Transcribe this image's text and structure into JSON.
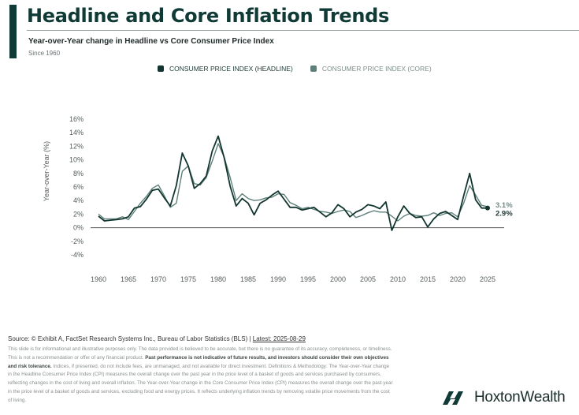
{
  "header": {
    "title": "Headline and Core Inflation Trends",
    "subtitle": "Year-over-Year change in Headline vs Core Consumer Price Index",
    "since": "Since 1960"
  },
  "legend": {
    "items": [
      {
        "label": "CONSUMER PRICE INDEX (HEADLINE)",
        "color": "#12352f"
      },
      {
        "label": "CONSUMER PRICE INDEX (CORE)",
        "color": "#5f807a"
      }
    ]
  },
  "chart_data": {
    "type": "line",
    "title": "Headline and Core Inflation Trends",
    "subtitle": "Year-over-Year change in Headline vs Core Consumer Price Index",
    "xlabel": "",
    "ylabel": "Year-over-Year (%)",
    "xlim": [
      1960,
      2025
    ],
    "ylim": [
      -4,
      16
    ],
    "x_ticks": [
      "1960",
      "1965",
      "1970",
      "1975",
      "1980",
      "1985",
      "1990",
      "1995",
      "2000",
      "2005",
      "2010",
      "2015",
      "2020",
      "2025"
    ],
    "y_ticks": [
      "16%",
      "14%",
      "12%",
      "10%",
      "8%",
      "6%",
      "4%",
      "2%",
      "0%",
      "-2%",
      "-4%"
    ],
    "y_tick_values": [
      16,
      14,
      12,
      10,
      8,
      6,
      4,
      2,
      0,
      -2,
      -4
    ],
    "grid": false,
    "zero_line": true,
    "legend_position": "top-center",
    "x": [
      1960,
      1961,
      1962,
      1963,
      1964,
      1965,
      1966,
      1967,
      1968,
      1969,
      1970,
      1971,
      1972,
      1973,
      1974,
      1975,
      1976,
      1977,
      1978,
      1979,
      1980,
      1981,
      1982,
      1983,
      1984,
      1985,
      1986,
      1987,
      1988,
      1989,
      1990,
      1991,
      1992,
      1993,
      1994,
      1995,
      1996,
      1997,
      1998,
      1999,
      2000,
      2001,
      2002,
      2003,
      2004,
      2005,
      2006,
      2007,
      2008,
      2009,
      2010,
      2011,
      2012,
      2013,
      2014,
      2015,
      2016,
      2017,
      2018,
      2019,
      2020,
      2021,
      2022,
      2023,
      2024,
      2025
    ],
    "series": [
      {
        "name": "CONSUMER PRICE INDEX (HEADLINE)",
        "color": "#12352f",
        "values": [
          1.7,
          1.0,
          1.1,
          1.2,
          1.3,
          1.6,
          2.9,
          3.1,
          4.2,
          5.5,
          5.7,
          4.4,
          3.2,
          6.2,
          11.0,
          9.1,
          5.8,
          6.5,
          7.6,
          11.3,
          13.5,
          10.3,
          6.1,
          3.2,
          4.3,
          3.6,
          1.9,
          3.6,
          4.1,
          4.8,
          5.4,
          4.2,
          3.0,
          3.0,
          2.6,
          2.8,
          3.0,
          2.3,
          1.6,
          2.2,
          3.4,
          2.8,
          1.6,
          2.3,
          2.7,
          3.4,
          3.2,
          2.8,
          3.8,
          -0.4,
          1.6,
          3.2,
          2.1,
          1.5,
          1.6,
          0.1,
          1.3,
          2.1,
          2.4,
          1.8,
          1.2,
          4.7,
          8.0,
          4.1,
          2.9,
          2.9
        ],
        "end_label": "2.9%"
      },
      {
        "name": "CONSUMER PRICE INDEX (CORE)",
        "color": "#5f807a",
        "values": [
          2.0,
          1.3,
          1.3,
          1.3,
          1.6,
          1.2,
          2.4,
          3.6,
          4.6,
          5.8,
          6.3,
          4.7,
          3.0,
          3.6,
          8.3,
          9.1,
          6.5,
          6.3,
          7.4,
          9.8,
          12.4,
          10.4,
          7.4,
          4.0,
          5.0,
          4.3,
          4.0,
          4.1,
          4.4,
          4.5,
          5.0,
          4.9,
          3.7,
          3.3,
          2.8,
          3.0,
          2.7,
          2.4,
          2.3,
          2.1,
          2.4,
          2.6,
          2.4,
          1.5,
          1.8,
          2.2,
          2.5,
          2.3,
          2.3,
          1.7,
          1.0,
          1.7,
          2.1,
          1.8,
          1.7,
          1.8,
          2.2,
          1.8,
          2.1,
          2.2,
          1.6,
          3.6,
          6.2,
          4.8,
          3.3,
          3.1
        ],
        "end_label": "3.1%"
      }
    ]
  },
  "footer": {
    "source_prefix": "Source: © Exhibit A, FactSet Research Systems Inc., Bureau of Labor Statistics (BLS) | ",
    "latest": "Latest: 2025-08-29",
    "disclaimer_1": "This slide is for informational and illustrative purposes only. The data provided is believed to be accurate, but there is no guarantee of its accuracy, completeness, or timeliness. This is not a recommendation or offer of any financial product. ",
    "disclaimer_bold": "Past performance is not indicative of future results, and investors should consider their own objectives and risk tolerance.",
    "disclaimer_2": " Indices, if presented, do not include fees, are unmanaged, and not available for direct investment. Definitions & Methodology: The Year-over-Year change in the Headline Consumer Price Index (CPI) measures the overall change over the past year in the price level of a basket of goods and services purchased by consumers, reflecting changes in the cost of living and overall inflation. The Year-over-Year change in the Core Consumer Price Index (CPI) measures the overall change over the past year in the price level of a basket of goods and services, excluding food and energy prices. It reflects underlying inflation trends by removing volatile price movements from the cost of living."
  },
  "brand": {
    "name": "HoxtonWealth",
    "color": "#0f3a35"
  }
}
